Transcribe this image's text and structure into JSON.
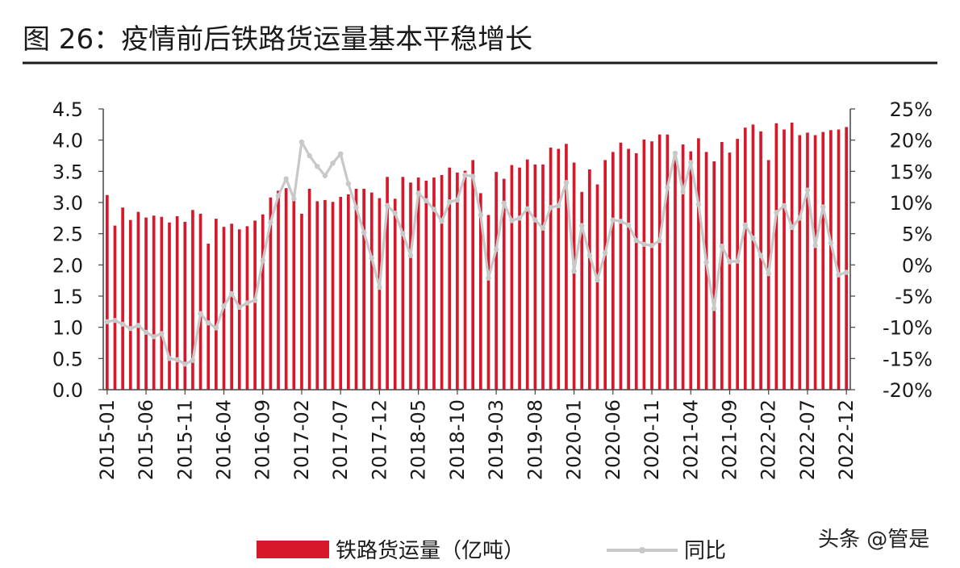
{
  "figure": {
    "title": "图 26：疫情前后铁路货运量基本平稳增长",
    "watermark": "头条 @管是"
  },
  "colors": {
    "bar": "#d6182a",
    "line": "#c8c8c8",
    "title_rule": "#1a1a1a"
  },
  "chart_data": {
    "type": "bar",
    "categories": [
      "2015-01",
      "2015-02",
      "2015-03",
      "2015-04",
      "2015-05",
      "2015-06",
      "2015-07",
      "2015-08",
      "2015-09",
      "2015-10",
      "2015-11",
      "2015-12",
      "2016-01",
      "2016-02",
      "2016-03",
      "2016-04",
      "2016-05",
      "2016-06",
      "2016-07",
      "2016-08",
      "2016-09",
      "2016-10",
      "2016-11",
      "2016-12",
      "2017-01",
      "2017-02",
      "2017-03",
      "2017-04",
      "2017-05",
      "2017-06",
      "2017-07",
      "2017-08",
      "2017-09",
      "2017-10",
      "2017-11",
      "2017-12",
      "2018-01",
      "2018-02",
      "2018-03",
      "2018-04",
      "2018-05",
      "2018-06",
      "2018-07",
      "2018-08",
      "2018-09",
      "2018-10",
      "2018-11",
      "2018-12",
      "2019-01",
      "2019-02",
      "2019-03",
      "2019-04",
      "2019-05",
      "2019-06",
      "2019-07",
      "2019-08",
      "2019-09",
      "2019-10",
      "2019-11",
      "2019-12",
      "2020-01",
      "2020-02",
      "2020-03",
      "2020-04",
      "2020-05",
      "2020-06",
      "2020-07",
      "2020-08",
      "2020-09",
      "2020-10",
      "2020-11",
      "2020-12",
      "2021-01",
      "2021-02",
      "2021-03",
      "2021-04",
      "2021-05",
      "2021-06",
      "2021-07",
      "2021-08",
      "2021-09",
      "2021-10",
      "2021-11",
      "2021-12",
      "2022-01",
      "2022-02",
      "2022-03",
      "2022-04",
      "2022-05",
      "2022-06",
      "2022-07",
      "2022-08",
      "2022-09",
      "2022-10",
      "2022-11",
      "2022-12"
    ],
    "x_tick_labels": [
      "2015-01",
      "2015-06",
      "2015-11",
      "2016-04",
      "2016-09",
      "2017-02",
      "2017-07",
      "2017-12",
      "2018-05",
      "2018-10",
      "2019-03",
      "2019-08",
      "2020-01",
      "2020-06",
      "2020-11",
      "2021-04",
      "2021-09",
      "2022-02",
      "2022-07",
      "2022-12"
    ],
    "series": [
      {
        "name": "铁路货运量（亿吨）",
        "type": "bar",
        "axis": "left",
        "values": [
          3.12,
          2.63,
          2.92,
          2.72,
          2.85,
          2.76,
          2.79,
          2.77,
          2.68,
          2.78,
          2.69,
          2.88,
          2.82,
          2.34,
          2.74,
          2.61,
          2.66,
          2.57,
          2.62,
          2.71,
          2.81,
          3.08,
          3.19,
          3.23,
          3.08,
          2.82,
          3.22,
          3.02,
          3.04,
          3.01,
          3.09,
          3.13,
          3.22,
          3.22,
          3.16,
          3.07,
          3.41,
          3.06,
          3.41,
          3.32,
          3.4,
          3.35,
          3.4,
          3.44,
          3.56,
          3.48,
          3.51,
          3.68,
          3.15,
          2.8,
          3.49,
          3.38,
          3.6,
          3.56,
          3.69,
          3.61,
          3.61,
          3.88,
          3.86,
          3.94,
          3.64,
          3.17,
          3.53,
          3.29,
          3.68,
          3.81,
          3.96,
          3.86,
          3.79,
          4.01,
          3.98,
          4.09,
          4.09,
          3.82,
          3.93,
          3.82,
          4.03,
          3.81,
          3.66,
          3.97,
          3.8,
          4.02,
          4.2,
          4.25,
          4.14,
          3.68,
          4.27,
          4.17,
          4.28,
          4.08,
          4.12,
          4.08,
          4.13,
          4.16,
          4.17,
          4.21
        ]
      },
      {
        "name": "同比",
        "type": "line",
        "axis": "right",
        "unit": "%",
        "values": [
          -9.1,
          -8.9,
          -9.5,
          -10.2,
          -9.7,
          -10.8,
          -11.5,
          -11.0,
          -15.0,
          -15.2,
          -15.9,
          -15.3,
          -7.8,
          -9.3,
          -10.1,
          -6.6,
          -4.6,
          -6.8,
          -6.1,
          -5.7,
          0.7,
          6.8,
          11.1,
          13.8,
          10.6,
          19.7,
          17.5,
          15.8,
          14.3,
          16.3,
          17.8,
          13.0,
          9.2,
          5.2,
          1.1,
          -3.6,
          9.5,
          8.3,
          5.0,
          1.5,
          11.5,
          10.3,
          8.9,
          7.0,
          10.1,
          10.4,
          14.4,
          14.2,
          8.0,
          -2.1,
          2.5,
          9.9,
          7.1,
          7.5,
          9.0,
          7.2,
          5.9,
          9.2,
          9.5,
          13.2,
          -1.0,
          6.3,
          1.5,
          -2.4,
          1.9,
          7.2,
          7.0,
          6.4,
          3.9,
          3.3,
          3.1,
          3.9,
          12.4,
          17.9,
          11.7,
          16.4,
          9.7,
          0.4,
          -7.0,
          3.0,
          0.5,
          0.6,
          6.4,
          4.3,
          1.5,
          -1.4,
          8.4,
          9.5,
          6.0,
          7.5,
          12.0,
          3.1,
          9.3,
          3.5,
          -1.6,
          -1.2
        ]
      }
    ],
    "left_axis": {
      "ylim": [
        0,
        4.5
      ],
      "ticks": [
        "0.0",
        "0.5",
        "1.0",
        "1.5",
        "2.0",
        "2.5",
        "3.0",
        "3.5",
        "4.0",
        "4.5"
      ]
    },
    "right_axis": {
      "ylim": [
        -20,
        25
      ],
      "ticks": [
        "-20%",
        "-15%",
        "-10%",
        "-5%",
        "0%",
        "5%",
        "10%",
        "15%",
        "20%",
        "25%"
      ]
    },
    "grid": false,
    "legend_position": "bottom"
  }
}
